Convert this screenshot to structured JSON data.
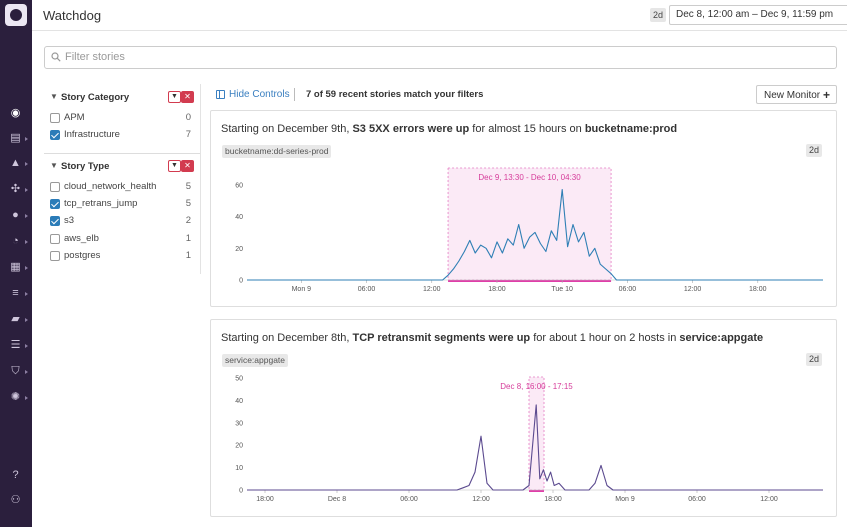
{
  "header": {
    "title": "Watchdog",
    "range_badge": "2d",
    "date_range": "Dec 8, 12:00 am – Dec 9, 11:59 pm"
  },
  "filter": {
    "placeholder": "Filter stories"
  },
  "facets": {
    "story_category": {
      "label": "Story Category",
      "items": [
        {
          "name": "APM",
          "count": "0",
          "checked": false
        },
        {
          "name": "Infrastructure",
          "count": "7",
          "checked": true
        }
      ]
    },
    "story_type": {
      "label": "Story Type",
      "items": [
        {
          "name": "cloud_network_health",
          "count": "5",
          "checked": false
        },
        {
          "name": "tcp_retrans_jump",
          "count": "5",
          "checked": true
        },
        {
          "name": "s3",
          "count": "2",
          "checked": true
        },
        {
          "name": "aws_elb",
          "count": "1",
          "checked": false
        },
        {
          "name": "postgres",
          "count": "1",
          "checked": false
        }
      ]
    }
  },
  "controls": {
    "hide_controls": "Hide Controls",
    "match_text": "7 of 59 recent stories match your filters",
    "new_monitor": "New Monitor"
  },
  "stories": [
    {
      "title_parts": [
        "Starting on December 9th, ",
        "S3 5XX errors were up",
        " for almost 15 hours on ",
        "bucketname:prod"
      ],
      "tag": "bucketname:dd-series-prod",
      "range": "2d",
      "annotation": "Dec 9, 13:30 - Dec 10, 04:30",
      "line_color": "#2f7fb5"
    },
    {
      "title_parts": [
        "Starting on December 8th, ",
        "TCP retransmit segments were up",
        " for about 1 hour on 2 hosts in ",
        "service:appgate"
      ],
      "tag": "service:appgate",
      "range": "2d",
      "annotation": "Dec 8, 16:00 - 17:15",
      "line_color": "#5b4a8f"
    }
  ],
  "chart_data": [
    {
      "type": "line",
      "ylim": [
        0,
        70
      ],
      "yticks": [
        0,
        20,
        40,
        60
      ],
      "xticks": [
        "Mon 9",
        "06:00",
        "12:00",
        "18:00",
        "Tue 10",
        "06:00",
        "12:00",
        "18:00"
      ],
      "x_hours": [
        0,
        6,
        12,
        18,
        24,
        30,
        36,
        42
      ],
      "xlim_hours": [
        -5,
        48
      ],
      "highlight_hours": [
        13.5,
        28.5
      ],
      "series": [
        {
          "x": [
            -5,
            13,
            13.5,
            14,
            14.5,
            15,
            15.5,
            16,
            16.5,
            17,
            17.5,
            18,
            18.5,
            19,
            19.5,
            20,
            20.5,
            21,
            21.5,
            22,
            22.5,
            23,
            23.5,
            24,
            24.5,
            25,
            25.5,
            26,
            26.5,
            27,
            27.5,
            28,
            28.5,
            29,
            48
          ],
          "y": [
            0,
            0,
            3,
            7,
            12,
            18,
            25,
            17,
            22,
            20,
            14,
            24,
            17,
            26,
            22,
            35,
            20,
            27,
            30,
            23,
            18,
            31,
            25,
            57,
            21,
            35,
            24,
            30,
            15,
            20,
            10,
            7,
            4,
            0,
            0
          ]
        }
      ]
    },
    {
      "type": "line",
      "ylim": [
        0,
        50
      ],
      "yticks": [
        0,
        10,
        20,
        30,
        40,
        50
      ],
      "xticks": [
        "18:00",
        "Dec 8",
        "06:00",
        "12:00",
        "18:00",
        "Mon 9",
        "06:00",
        "12:00"
      ],
      "x_hours": [
        -6,
        0,
        6,
        12,
        18,
        24,
        30,
        36
      ],
      "xlim_hours": [
        -7.5,
        40.5
      ],
      "highlight_hours": [
        16,
        17.25
      ],
      "series": [
        {
          "x": [
            -7.5,
            10,
            10.5,
            11,
            11.5,
            12,
            12.5,
            13,
            15.5,
            16,
            16.3,
            16.6,
            16.9,
            17.2,
            17.5,
            17.8,
            18.1,
            18.5,
            19,
            21,
            21.5,
            22,
            22.5,
            23,
            40.5
          ],
          "y": [
            0,
            0,
            1,
            2,
            8,
            24,
            3,
            0,
            0,
            2,
            20,
            38,
            5,
            9,
            4,
            8,
            2,
            3,
            0,
            0,
            3,
            11,
            2,
            0,
            0
          ]
        }
      ]
    }
  ]
}
